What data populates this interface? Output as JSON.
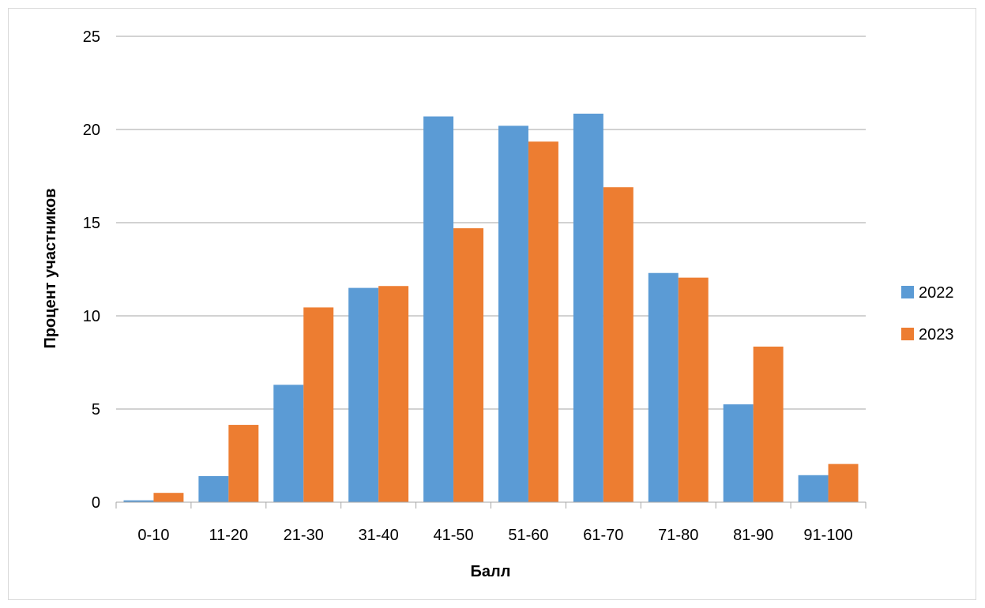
{
  "chart_data": {
    "type": "bar",
    "categories": [
      "0-10",
      "11-20",
      "21-30",
      "31-40",
      "41-50",
      "51-60",
      "61-70",
      "71-80",
      "81-90",
      "91-100"
    ],
    "series": [
      {
        "name": "2022",
        "values": [
          0.1,
          1.4,
          6.3,
          11.5,
          20.7,
          20.2,
          20.85,
          12.3,
          5.25,
          1.45
        ],
        "color": "#5b9bd5"
      },
      {
        "name": "2023",
        "values": [
          0.5,
          4.15,
          10.45,
          11.6,
          14.7,
          19.35,
          16.9,
          12.05,
          8.35,
          2.05
        ],
        "color": "#ed7d31"
      }
    ],
    "xlabel": "Балл",
    "ylabel": "Процент участников",
    "ylim": [
      0,
      25
    ],
    "yticks": [
      0,
      5,
      10,
      15,
      20,
      25
    ],
    "grid": true,
    "legend_position": "right"
  }
}
